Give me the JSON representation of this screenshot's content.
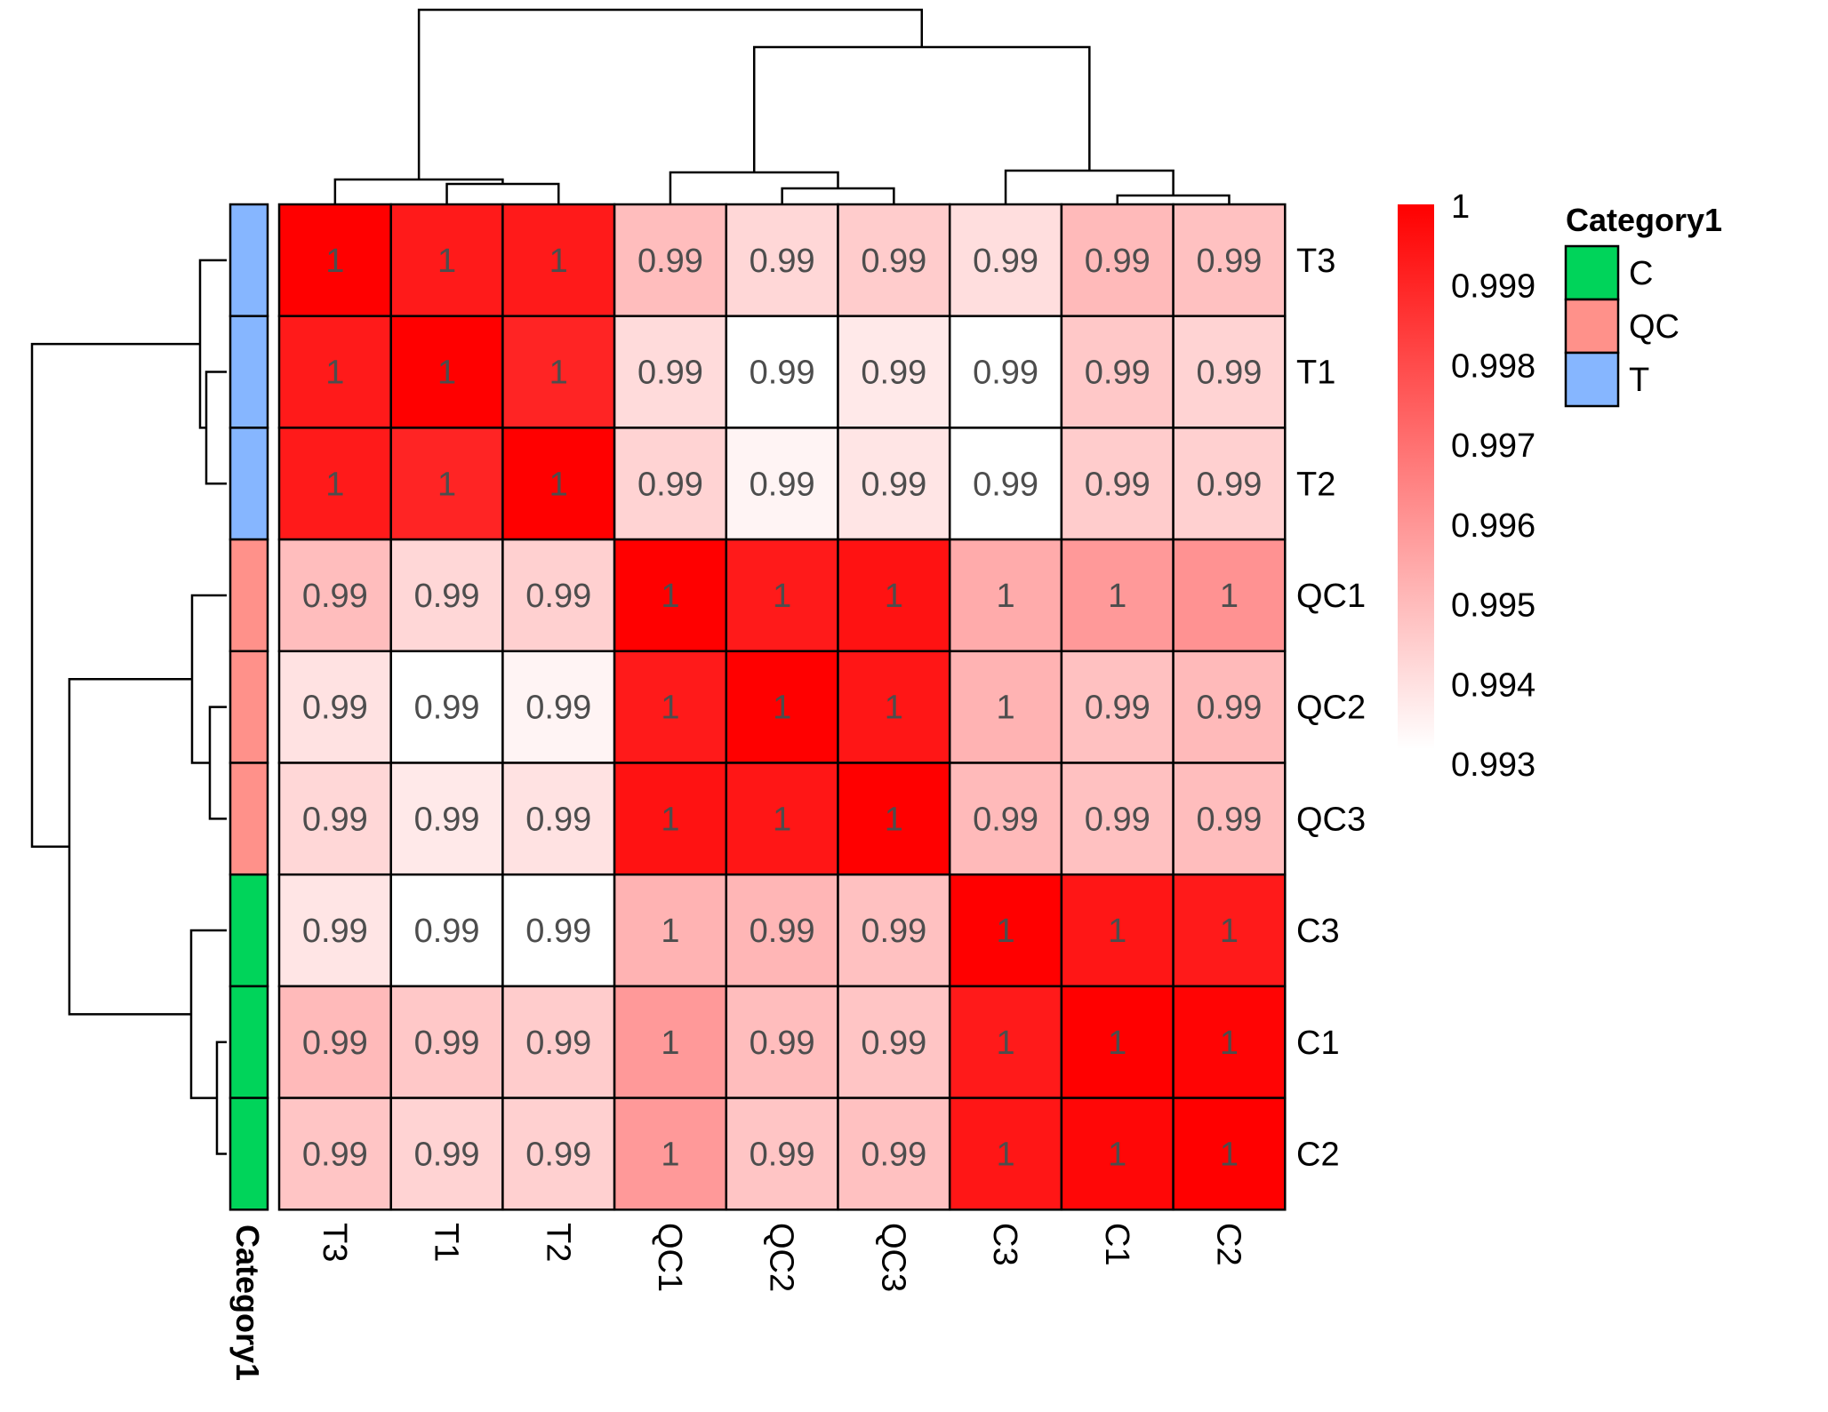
{
  "chart_data": {
    "type": "heatmap",
    "title": "",
    "rows": [
      "T3",
      "T1",
      "T2",
      "QC1",
      "QC2",
      "QC3",
      "C3",
      "C1",
      "C2"
    ],
    "columns": [
      "T3",
      "T1",
      "T2",
      "QC1",
      "QC2",
      "QC3",
      "C3",
      "C1",
      "C2"
    ],
    "values": [
      [
        1.0,
        0.9993,
        0.9993,
        0.9948,
        0.9941,
        0.9944,
        0.9939,
        0.9949,
        0.9947
      ],
      [
        0.9993,
        1.0,
        0.999,
        0.994,
        0.993,
        0.9936,
        0.993,
        0.9945,
        0.9942
      ],
      [
        0.9993,
        0.999,
        1.0,
        0.9942,
        0.9933,
        0.9937,
        0.993,
        0.9944,
        0.9943
      ],
      [
        0.9948,
        0.9941,
        0.9943,
        1.0,
        0.9993,
        0.9995,
        0.9953,
        0.9958,
        0.996
      ],
      [
        0.9938,
        0.993,
        0.9933,
        0.9993,
        1.0,
        0.9994,
        0.9951,
        0.9947,
        0.9949
      ],
      [
        0.9941,
        0.9936,
        0.9938,
        0.9995,
        0.9994,
        1.0,
        0.9949,
        0.9947,
        0.9948
      ],
      [
        0.9937,
        0.993,
        0.993,
        0.9951,
        0.995,
        0.9947,
        1.0,
        0.9994,
        0.9993
      ],
      [
        0.9949,
        0.9945,
        0.9944,
        0.9958,
        0.9948,
        0.9946,
        0.9993,
        1.0,
        0.9999
      ],
      [
        0.9946,
        0.9942,
        0.9943,
        0.9958,
        0.9946,
        0.9947,
        0.9994,
        0.9998,
        1.0
      ]
    ],
    "cell_labels_rounding": 2,
    "color_scale": {
      "min": 0.993,
      "max": 1,
      "low_color": "#ffffff",
      "high_color": "#ff0000",
      "ticks": [
        "1",
        "0.999",
        "0.998",
        "0.997",
        "0.996",
        "0.995",
        "0.994",
        "0.993"
      ]
    },
    "annotation": {
      "name": "Category1",
      "row_categories": [
        "T",
        "T",
        "T",
        "QC",
        "QC",
        "QC",
        "C",
        "C",
        "C"
      ],
      "legend": [
        {
          "label": "C",
          "color": "#00d45a"
        },
        {
          "label": "QC",
          "color": "#ff918a"
        },
        {
          "label": "T",
          "color": "#86b6ff"
        }
      ]
    },
    "row_dendrogram": true,
    "column_dendrogram": true
  }
}
